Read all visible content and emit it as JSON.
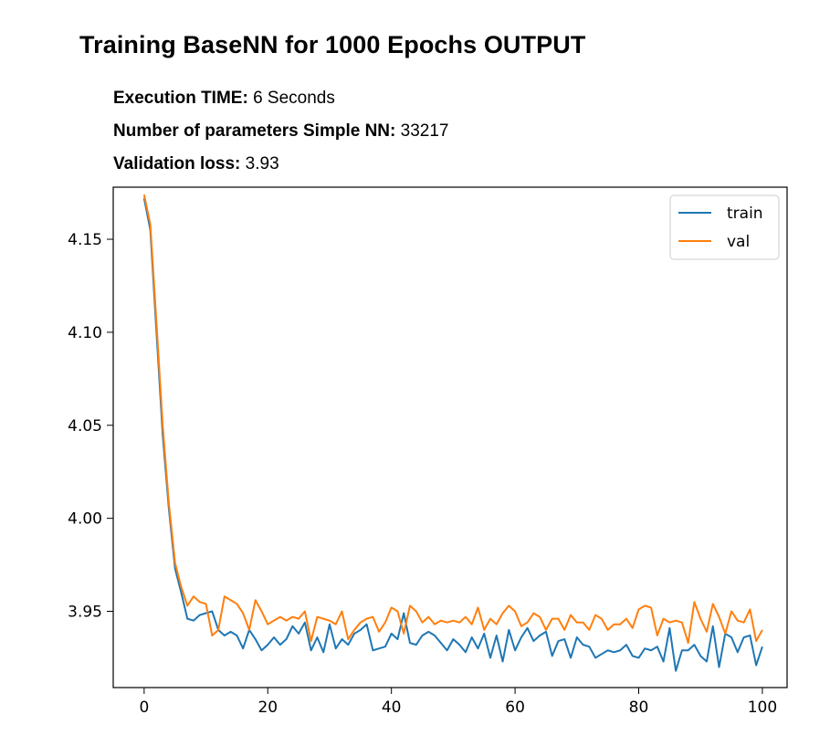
{
  "title": "Training BaseNN for 1000 Epochs OUTPUT",
  "stats": {
    "time_label": "Execution TIME:",
    "time_value": "6 Seconds",
    "params_label": "Number of parameters Simple NN:",
    "params_value": "33217",
    "loss_label": "Validation loss:",
    "loss_value": "3.93"
  },
  "chart_data": {
    "type": "line",
    "title": "",
    "xlabel": "",
    "ylabel": "",
    "xlim": [
      -5,
      104
    ],
    "ylim": [
      3.909,
      4.178
    ],
    "xticks": [
      0,
      20,
      40,
      60,
      80,
      100
    ],
    "yticks": [
      3.95,
      4.0,
      4.05,
      4.1,
      4.15
    ],
    "ytick_labels": [
      "3.95",
      "4.00",
      "4.05",
      "4.10",
      "4.15"
    ],
    "legend_position": "top-right",
    "grid": false,
    "series": [
      {
        "name": "train",
        "color": "#1f77b4",
        "values": [
          4.172,
          4.155,
          4.1,
          4.045,
          4.005,
          3.973,
          3.96,
          3.946,
          3.945,
          3.948,
          3.949,
          3.95,
          3.94,
          3.937,
          3.939,
          3.937,
          3.93,
          3.94,
          3.935,
          3.929,
          3.932,
          3.936,
          3.932,
          3.935,
          3.942,
          3.938,
          3.944,
          3.929,
          3.936,
          3.928,
          3.943,
          3.93,
          3.935,
          3.932,
          3.938,
          3.94,
          3.943,
          3.929,
          3.93,
          3.931,
          3.938,
          3.935,
          3.949,
          3.933,
          3.932,
          3.937,
          3.939,
          3.937,
          3.933,
          3.929,
          3.935,
          3.932,
          3.928,
          3.936,
          3.93,
          3.938,
          3.925,
          3.937,
          3.923,
          3.94,
          3.929,
          3.936,
          3.941,
          3.934,
          3.937,
          3.939,
          3.926,
          3.934,
          3.935,
          3.925,
          3.936,
          3.932,
          3.931,
          3.925,
          3.927,
          3.929,
          3.928,
          3.929,
          3.932,
          3.926,
          3.925,
          3.93,
          3.929,
          3.931,
          3.923,
          3.941,
          3.918,
          3.929,
          3.929,
          3.932,
          3.926,
          3.923,
          3.942,
          3.92,
          3.938,
          3.936,
          3.928,
          3.936,
          3.937,
          3.921,
          3.931
        ]
      },
      {
        "name": "val",
        "color": "#ff7f0e",
        "values": [
          4.174,
          4.158,
          4.105,
          4.05,
          4.008,
          3.976,
          3.963,
          3.953,
          3.958,
          3.955,
          3.954,
          3.937,
          3.94,
          3.958,
          3.956,
          3.954,
          3.949,
          3.94,
          3.956,
          3.95,
          3.943,
          3.945,
          3.947,
          3.945,
          3.947,
          3.946,
          3.95,
          3.934,
          3.947,
          3.946,
          3.945,
          3.943,
          3.95,
          3.935,
          3.94,
          3.944,
          3.946,
          3.947,
          3.939,
          3.944,
          3.952,
          3.95,
          3.938,
          3.953,
          3.95,
          3.944,
          3.947,
          3.943,
          3.945,
          3.944,
          3.945,
          3.944,
          3.947,
          3.943,
          3.952,
          3.94,
          3.946,
          3.943,
          3.949,
          3.953,
          3.95,
          3.942,
          3.944,
          3.949,
          3.947,
          3.94,
          3.946,
          3.946,
          3.94,
          3.948,
          3.944,
          3.944,
          3.94,
          3.948,
          3.946,
          3.94,
          3.943,
          3.943,
          3.946,
          3.941,
          3.951,
          3.953,
          3.952,
          3.937,
          3.946,
          3.944,
          3.945,
          3.944,
          3.933,
          3.955,
          3.946,
          3.939,
          3.954,
          3.947,
          3.938,
          3.95,
          3.945,
          3.944,
          3.951,
          3.934,
          3.94
        ]
      }
    ]
  }
}
